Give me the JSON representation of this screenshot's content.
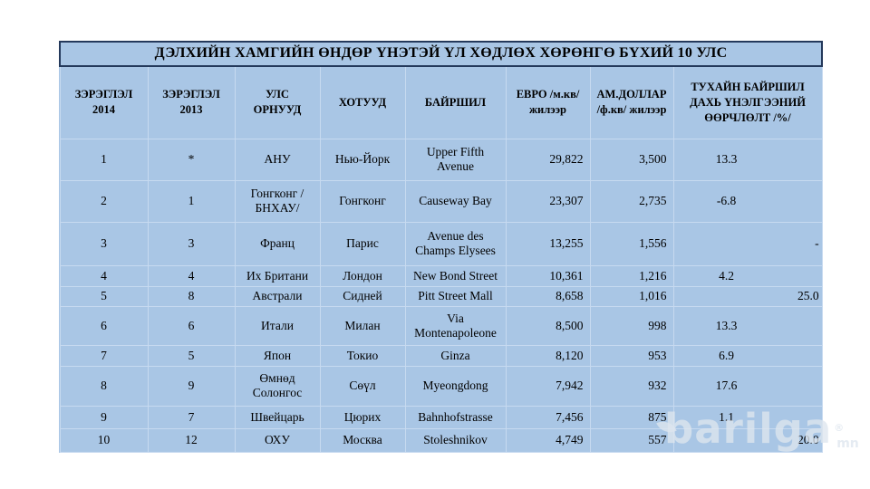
{
  "title": "ДЭЛХИЙН ХАМГИЙН ӨНДӨР ҮНЭТЭЙ ҮЛ ХӨДЛӨХ ХӨРӨНГӨ БҮХИЙ 10 УЛС",
  "columns": [
    "ЗЭРЭГЛЭЛ\n2014",
    "ЗЭРЭГЛЭЛ\n2013",
    "УЛС\nОРНУУД",
    "ХОТУУД",
    "БАЙРШИЛ",
    "ЕВРО /м.кв/\nжилээр",
    "АМ.ДОЛЛАР\n/ф.кв/ жилээр",
    "ТУХАЙН БАЙРШИЛ\nДАХЬ ҮНЭЛГЭЭНИЙ\nӨӨРЧЛӨЛТ /%/"
  ],
  "rows": [
    {
      "cells": [
        "1",
        "*",
        "АНУ",
        "Нью-Йорк",
        "Upper Fifth Avenue",
        "29,822",
        "3,500",
        "13.3"
      ],
      "change_align": "center"
    },
    {
      "cells": [
        "2",
        "1",
        "Гонгконг /БНХАУ/",
        "Гонгконг",
        "Causeway Bay",
        "23,307",
        "2,735",
        "-6.8"
      ],
      "change_align": "center"
    },
    {
      "cells": [
        "3",
        "3",
        "Франц",
        "Парис",
        "Avenue des Champs Elysees",
        "13,255",
        "1,556",
        "-"
      ],
      "change_align": "right"
    },
    {
      "cells": [
        "4",
        "4",
        "Их Британи",
        "Лондон",
        "New Bond Street",
        "10,361",
        "1,216",
        "4.2"
      ],
      "change_align": "center"
    },
    {
      "cells": [
        "5",
        "8",
        "Австрали",
        "Сидней",
        "Pitt Street Mall",
        "8,658",
        "1,016",
        "25.0"
      ],
      "change_align": "right"
    },
    {
      "cells": [
        "6",
        "6",
        "Итали",
        "Милан",
        "Via Montenapoleone",
        "8,500",
        "998",
        "13.3"
      ],
      "change_align": "center"
    },
    {
      "cells": [
        "7",
        "5",
        "Япон",
        "Токио",
        "Ginza",
        "8,120",
        "953",
        "6.9"
      ],
      "change_align": "center"
    },
    {
      "cells": [
        "8",
        "9",
        "Өмнөд Солонгос",
        "Сөүл",
        "Myeongdong",
        "7,942",
        "932",
        "17.6"
      ],
      "change_align": "center"
    },
    {
      "cells": [
        "9",
        "7",
        "Швейцарь",
        "Цюрих",
        "Bahnhofstrasse",
        "7,456",
        "875",
        "1.1"
      ],
      "change_align": "center"
    },
    {
      "cells": [
        "10",
        "12",
        "ОХУ",
        "Москва",
        "Stoleshnikov",
        "4,749",
        "557",
        "20.0"
      ],
      "change_align": "right"
    }
  ],
  "watermark": {
    "text": "barilga",
    "reg": "®",
    "suffix": "mn"
  },
  "colors": {
    "page_bg": "#ffffff",
    "cell_bg": "#a9c6e5",
    "grid_line": "#c7daf0",
    "title_border": "#24395b",
    "text": "#000000"
  }
}
